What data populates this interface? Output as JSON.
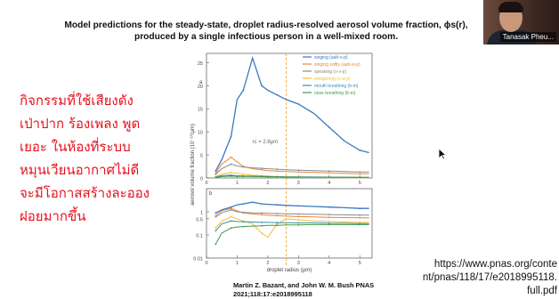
{
  "slide": {
    "title_line1": "Model predictions for the steady-state, droplet radius-resolved aerosol volume fraction, ϕs(r),",
    "title_line2": "produced by a single infectious person in a well-mixed room.",
    "citation_line1": "Martin Z. Bazant,  and John W. M. Bush PNAS",
    "citation_line2": "2021;118:17:e2018995118",
    "url_lines": [
      "https://www.pnas.org/conte",
      "nt/pnas/118/17/e2018995118.",
      "full.pdf"
    ]
  },
  "annotation": {
    "color": "#e8101b",
    "lines": [
      "กิจกรรมที่ใช้เสียงดัง",
      "เป่าปาก ร้องเพลง พูด",
      "เยอะ ในห้องที่ระบบ",
      "หมุนเวียนอากาศไม่ดี",
      "จะมีโอกาสสร้างละออง",
      "ฝอยมากขึ้น"
    ]
  },
  "video": {
    "participant_name": "Tanasak Pheu..."
  },
  "chart_data": {
    "type": "line",
    "xlabel": "droplet radius (μm)",
    "ylabel": "aerosol volume fraction  (10⁻¹⁰/μm)",
    "annotation": "rc = 2.6μm",
    "vline_x": 2.6,
    "top": {
      "ylim": [
        0,
        27
      ],
      "yticks": [
        0,
        5,
        10,
        15,
        20,
        25
      ],
      "y_label_top": "a",
      "xticks": [
        0,
        1,
        2,
        3,
        4,
        5
      ]
    },
    "bottom": {
      "ylim_log": [
        -2,
        1
      ],
      "yticks": [
        0.01,
        0.1,
        0.5,
        1
      ],
      "ytick_labels": [
        "0.01",
        "0.1",
        "0.5",
        "1"
      ],
      "xticks": [
        0,
        1,
        2,
        3,
        4,
        5
      ],
      "y_label_top": "b"
    },
    "x": [
      0.3,
      0.5,
      0.8,
      1.0,
      1.2,
      1.5,
      1.8,
      2.0,
      2.3,
      2.6,
      3.0,
      3.5,
      4.0,
      4.5,
      5.0,
      5.3
    ],
    "series": [
      {
        "name": "singing (aah-v-p)",
        "color": "#3a78c2",
        "values_top": [
          1.5,
          4,
          9,
          17,
          19,
          26,
          20,
          19,
          18,
          17,
          16,
          14,
          11,
          8,
          6,
          5.5
        ],
        "values_bottom": [
          0.9,
          1.2,
          1.6,
          2.0,
          2.2,
          2.6,
          2.2,
          2.1,
          2.0,
          1.9,
          1.8,
          1.7,
          1.6,
          1.5,
          1.4,
          1.4
        ]
      },
      {
        "name": "singing softly (aah-w-p)",
        "color": "#e8863a",
        "values_top": [
          1,
          3,
          4.5,
          3.5,
          2.5,
          2,
          1.8,
          1.6,
          1.5,
          1.4,
          1.3,
          1.2,
          1.1,
          1.0,
          0.9,
          0.9
        ],
        "values_bottom": [
          0.7,
          1.1,
          1.4,
          1.1,
          0.9,
          0.8,
          0.75,
          0.7,
          0.68,
          0.65,
          0.62,
          0.6,
          0.58,
          0.56,
          0.55,
          0.55
        ]
      },
      {
        "name": "speaking (o-v-p)",
        "color": "#8a8a8a",
        "values_top": [
          0.8,
          2,
          3,
          2.6,
          2.4,
          2.2,
          2.1,
          2.0,
          1.9,
          1.8,
          1.7,
          1.6,
          1.5,
          1.4,
          1.3,
          1.3
        ],
        "values_bottom": [
          0.6,
          0.9,
          1.2,
          1.0,
          0.95,
          0.9,
          0.88,
          0.86,
          0.84,
          0.82,
          0.8,
          0.78,
          0.76,
          0.74,
          0.72,
          0.72
        ]
      },
      {
        "name": "whispering (c-w-p)",
        "color": "#f2c230",
        "values_top": [
          0.3,
          0.8,
          1.2,
          1.0,
          0.8,
          0.6,
          0.5,
          0.4,
          0.3,
          0.2,
          0.15,
          0.1,
          0.08,
          0.06,
          0.05,
          0.05
        ],
        "values_bottom": [
          0.2,
          0.4,
          0.6,
          0.5,
          0.4,
          0.3,
          0.12,
          0.08,
          0.3,
          0.5,
          0.45,
          0.4,
          0.38,
          0.36,
          0.35,
          0.35
        ]
      },
      {
        "name": "mouth breathing (b-m)",
        "color": "#3f8fa6",
        "values_top": [
          0.2,
          0.5,
          0.6,
          0.5,
          0.45,
          0.4,
          0.35,
          0.3,
          0.28,
          0.26,
          0.24,
          0.22,
          0.2,
          0.18,
          0.16,
          0.15
        ],
        "values_bottom": [
          0.15,
          0.3,
          0.4,
          0.38,
          0.37,
          0.36,
          0.35,
          0.35,
          0.34,
          0.34,
          0.33,
          0.33,
          0.32,
          0.32,
          0.31,
          0.31
        ]
      },
      {
        "name": "nose breathing (b-m)",
        "color": "#3c9a46",
        "values_top": [
          0.1,
          0.3,
          0.4,
          0.35,
          0.32,
          0.3,
          0.28,
          0.26,
          0.24,
          0.22,
          0.2,
          0.18,
          0.16,
          0.14,
          0.12,
          0.12
        ],
        "values_bottom": [
          0.04,
          0.12,
          0.2,
          0.22,
          0.23,
          0.24,
          0.25,
          0.26,
          0.26,
          0.27,
          0.27,
          0.28,
          0.28,
          0.28,
          0.28,
          0.28
        ]
      }
    ]
  }
}
